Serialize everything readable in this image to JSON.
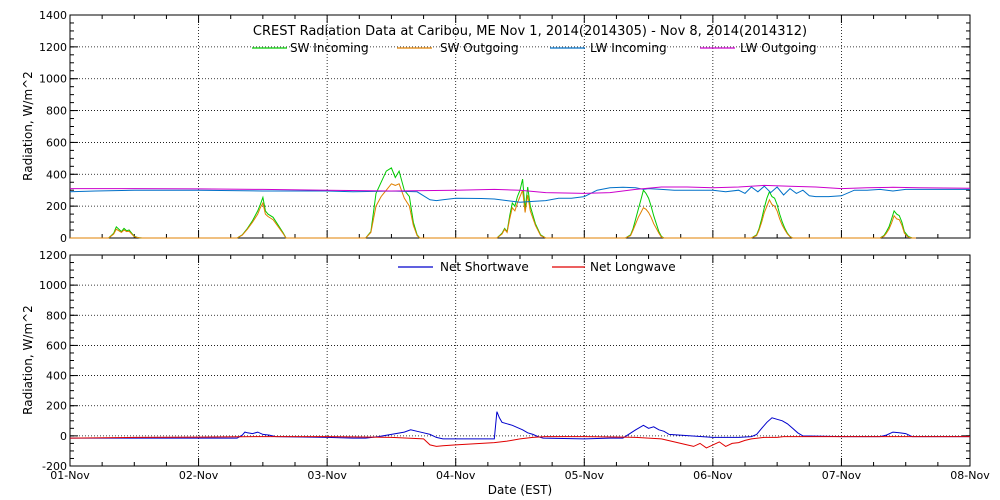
{
  "chart_data": [
    {
      "type": "line",
      "title": "CREST Radiation Data at Caribou, ME   Nov  1, 2014(2014305) - Nov  8, 2014(2014312)",
      "xlabel": "",
      "ylabel": "Radiation, W/m^2",
      "xlim": [
        0,
        7
      ],
      "ylim": [
        0,
        1400
      ],
      "yticks": [
        0,
        200,
        400,
        600,
        800,
        1000,
        1200,
        1400
      ],
      "grid": true,
      "legend_position": "top",
      "series": [
        {
          "name": "SW Incoming",
          "color": "#00cc00",
          "x": [
            0.0,
            0.3,
            0.34,
            0.36,
            0.38,
            0.4,
            0.42,
            0.44,
            0.46,
            0.48,
            0.5,
            0.52,
            0.54,
            0.56,
            1.3,
            1.34,
            1.38,
            1.42,
            1.46,
            1.48,
            1.5,
            1.52,
            1.54,
            1.58,
            1.62,
            1.66,
            1.68,
            2.3,
            2.34,
            2.38,
            2.42,
            2.46,
            2.5,
            2.53,
            2.56,
            2.6,
            2.64,
            2.67,
            2.7,
            2.72,
            3.32,
            3.36,
            3.38,
            3.4,
            3.42,
            3.44,
            3.46,
            3.48,
            3.5,
            3.52,
            3.54,
            3.56,
            3.58,
            3.62,
            3.66,
            3.7,
            4.32,
            4.36,
            4.38,
            4.4,
            4.42,
            4.44,
            4.46,
            4.48,
            4.5,
            4.52,
            4.54,
            4.56,
            4.58,
            4.6,
            4.62,
            4.65,
            5.3,
            5.34,
            5.36,
            5.38,
            5.4,
            5.42,
            5.44,
            5.46,
            5.48,
            5.5,
            5.52,
            5.54,
            5.56,
            5.58,
            5.6,
            5.62,
            5.64,
            5.66,
            5.7,
            6.3,
            6.33,
            6.35,
            6.37,
            6.39,
            6.41,
            6.43,
            6.45,
            6.47,
            6.49,
            6.52,
            6.55,
            6.58
          ],
          "values": [
            0,
            0,
            30,
            70,
            55,
            40,
            60,
            45,
            50,
            30,
            10,
            5,
            2,
            0,
            0,
            20,
            60,
            110,
            170,
            210,
            255,
            170,
            150,
            130,
            80,
            30,
            0,
            0,
            40,
            280,
            350,
            420,
            440,
            380,
            420,
            300,
            260,
            100,
            20,
            0,
            0,
            30,
            60,
            40,
            140,
            220,
            200,
            260,
            300,
            370,
            180,
            320,
            200,
            90,
            20,
            0,
            0,
            20,
            60,
            120,
            180,
            240,
            300,
            280,
            250,
            200,
            140,
            90,
            40,
            10,
            0,
            0,
            0,
            20,
            60,
            120,
            190,
            250,
            290,
            260,
            250,
            210,
            150,
            100,
            60,
            30,
            10,
            0,
            0,
            0,
            0,
            0,
            15,
            40,
            70,
            120,
            170,
            150,
            140,
            100,
            40,
            10,
            0,
            0
          ]
        },
        {
          "name": "SW Outgoing",
          "color": "#e08000",
          "x": [
            0.0,
            0.3,
            0.34,
            0.36,
            0.38,
            0.4,
            0.42,
            0.44,
            0.46,
            0.48,
            0.5,
            0.52,
            0.54,
            0.56,
            1.3,
            1.34,
            1.38,
            1.42,
            1.46,
            1.48,
            1.5,
            1.52,
            1.54,
            1.58,
            1.62,
            1.66,
            1.68,
            2.3,
            2.34,
            2.38,
            2.42,
            2.46,
            2.5,
            2.53,
            2.56,
            2.6,
            2.64,
            2.67,
            2.7,
            2.72,
            3.32,
            3.36,
            3.38,
            3.4,
            3.42,
            3.44,
            3.46,
            3.48,
            3.5,
            3.52,
            3.54,
            3.56,
            3.58,
            3.62,
            3.66,
            3.7,
            4.32,
            4.36,
            4.38,
            4.4,
            4.42,
            4.44,
            4.46,
            4.48,
            4.5,
            4.52,
            4.54,
            4.56,
            4.58,
            4.6,
            4.62,
            4.65,
            5.3,
            5.34,
            5.36,
            5.38,
            5.4,
            5.42,
            5.44,
            5.46,
            5.48,
            5.5,
            5.52,
            5.54,
            5.56,
            5.58,
            5.6,
            5.62,
            5.64,
            5.66,
            5.7,
            6.3,
            6.33,
            6.35,
            6.37,
            6.39,
            6.41,
            6.43,
            6.45,
            6.47,
            6.49,
            6.52,
            6.55,
            6.58
          ],
          "values": [
            0,
            0,
            25,
            55,
            45,
            35,
            50,
            40,
            42,
            25,
            8,
            4,
            1,
            0,
            0,
            18,
            55,
            100,
            150,
            190,
            220,
            150,
            135,
            115,
            70,
            25,
            0,
            0,
            35,
            200,
            260,
            300,
            340,
            330,
            340,
            250,
            200,
            80,
            15,
            0,
            0,
            25,
            55,
            35,
            120,
            190,
            170,
            220,
            260,
            300,
            160,
            270,
            170,
            80,
            15,
            0,
            0,
            15,
            50,
            90,
            130,
            160,
            190,
            180,
            160,
            130,
            90,
            60,
            30,
            5,
            0,
            0,
            0,
            15,
            50,
            100,
            160,
            200,
            240,
            210,
            200,
            170,
            120,
            80,
            50,
            25,
            8,
            0,
            0,
            0,
            0,
            0,
            10,
            30,
            55,
            95,
            140,
            120,
            115,
            80,
            30,
            5,
            0,
            0
          ]
        },
        {
          "name": "LW Incoming",
          "color": "#0070c8",
          "x": [
            0.0,
            0.2,
            0.5,
            1.0,
            1.5,
            2.0,
            2.2,
            2.5,
            2.7,
            2.8,
            2.85,
            2.9,
            3.0,
            3.2,
            3.3,
            3.4,
            3.5,
            3.6,
            3.7,
            3.8,
            3.9,
            4.0,
            4.1,
            4.2,
            4.3,
            4.4,
            4.46,
            4.5,
            4.6,
            4.7,
            4.8,
            4.9,
            5.0,
            5.1,
            5.2,
            5.25,
            5.3,
            5.35,
            5.4,
            5.45,
            5.5,
            5.55,
            5.6,
            5.65,
            5.7,
            5.75,
            5.8,
            5.9,
            6.0,
            6.1,
            6.2,
            6.3,
            6.4,
            6.5,
            6.6,
            7.0
          ],
          "values": [
            290,
            295,
            300,
            300,
            295,
            295,
            290,
            295,
            290,
            240,
            235,
            240,
            250,
            248,
            245,
            235,
            225,
            230,
            235,
            250,
            250,
            260,
            300,
            315,
            318,
            315,
            305,
            310,
            305,
            300,
            300,
            300,
            300,
            290,
            300,
            280,
            320,
            290,
            325,
            285,
            320,
            270,
            310,
            280,
            300,
            265,
            260,
            260,
            265,
            300,
            300,
            305,
            295,
            305,
            305,
            305
          ]
        },
        {
          "name": "LW Outgoing",
          "color": "#cc00cc",
          "x": [
            0.0,
            0.5,
            1.0,
            1.5,
            2.0,
            2.5,
            3.0,
            3.3,
            3.5,
            3.7,
            4.0,
            4.2,
            4.4,
            4.6,
            4.8,
            5.0,
            5.2,
            5.4,
            5.6,
            5.8,
            6.0,
            6.2,
            6.4,
            6.6,
            7.0
          ],
          "values": [
            310,
            310,
            308,
            305,
            300,
            295,
            300,
            305,
            300,
            285,
            280,
            285,
            305,
            320,
            320,
            315,
            320,
            330,
            325,
            320,
            310,
            315,
            318,
            315,
            312
          ]
        }
      ]
    },
    {
      "type": "line",
      "title": "",
      "xlabel": "Date (EST)",
      "ylabel": "Radiation, W/m^2",
      "xlim": [
        0,
        7
      ],
      "ylim": [
        -200,
        1200
      ],
      "yticks": [
        -200,
        0,
        200,
        400,
        600,
        800,
        1000,
        1200
      ],
      "grid": true,
      "legend_position": "top",
      "x_tick_labels": [
        "01-Nov",
        "02-Nov",
        "03-Nov",
        "04-Nov",
        "05-Nov",
        "06-Nov",
        "07-Nov",
        "08-Nov"
      ],
      "series": [
        {
          "name": "Net Shortwave",
          "color": "#0000cc",
          "x": [
            0.0,
            0.5,
            1.0,
            1.2,
            1.3,
            1.34,
            1.36,
            1.38,
            1.42,
            1.46,
            1.5,
            1.55,
            1.6,
            2.0,
            2.2,
            2.3,
            2.4,
            2.5,
            2.6,
            2.65,
            2.7,
            2.75,
            2.8,
            2.85,
            2.9,
            3.0,
            3.3,
            3.32,
            3.34,
            3.36,
            3.4,
            3.44,
            3.48,
            3.52,
            3.56,
            3.6,
            3.64,
            3.68,
            4.0,
            4.2,
            4.3,
            4.4,
            4.46,
            4.5,
            4.54,
            4.58,
            4.62,
            4.66,
            5.0,
            5.2,
            5.3,
            5.34,
            5.38,
            5.42,
            5.46,
            5.5,
            5.54,
            5.58,
            5.62,
            5.66,
            5.7,
            6.0,
            6.3,
            6.35,
            6.4,
            6.45,
            6.5,
            6.55,
            7.0
          ],
          "values": [
            -15,
            -15,
            -15,
            -15,
            -15,
            5,
            25,
            20,
            15,
            25,
            10,
            5,
            -5,
            -10,
            -15,
            -15,
            -5,
            10,
            25,
            40,
            30,
            20,
            10,
            -10,
            -20,
            -20,
            -20,
            160,
            120,
            90,
            80,
            70,
            55,
            40,
            20,
            10,
            -5,
            -15,
            -20,
            -15,
            -15,
            40,
            70,
            50,
            60,
            40,
            30,
            10,
            -10,
            -10,
            -5,
            10,
            50,
            90,
            120,
            110,
            100,
            80,
            50,
            20,
            0,
            -5,
            -5,
            5,
            25,
            20,
            15,
            -5,
            -5
          ]
        },
        {
          "name": "Net Longwave",
          "color": "#e00000",
          "x": [
            0.0,
            0.5,
            1.0,
            1.5,
            2.0,
            2.5,
            2.75,
            2.8,
            2.85,
            2.9,
            3.0,
            3.1,
            3.2,
            3.3,
            3.4,
            3.5,
            3.6,
            3.7,
            4.0,
            4.3,
            4.4,
            4.5,
            4.6,
            4.7,
            4.8,
            4.85,
            4.9,
            4.95,
            5.0,
            5.05,
            5.1,
            5.15,
            5.2,
            5.25,
            5.3,
            5.35,
            5.4,
            5.45,
            5.5,
            5.55,
            5.6,
            5.7,
            5.8,
            6.0,
            6.5,
            7.0
          ],
          "values": [
            -15,
            -10,
            -8,
            -5,
            -5,
            -10,
            -20,
            -60,
            -70,
            -65,
            -60,
            -55,
            -50,
            -45,
            -35,
            -20,
            -10,
            -5,
            -5,
            -8,
            -10,
            -15,
            -20,
            -40,
            -60,
            -70,
            -50,
            -80,
            -60,
            -40,
            -70,
            -50,
            -45,
            -30,
            -20,
            -15,
            -10,
            -10,
            -10,
            -5,
            -5,
            -5,
            -5,
            -5,
            -5,
            -5
          ]
        }
      ]
    }
  ]
}
